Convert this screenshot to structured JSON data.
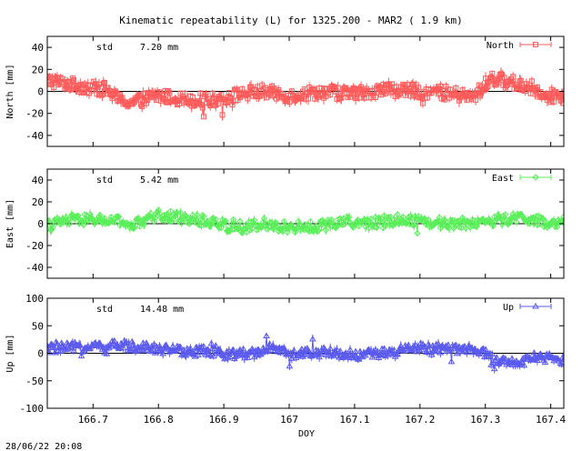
{
  "title": "Kinematic repeatability (L) for 1325.200 - MAR2  (  1.9 km)",
  "footer": "28/06/22 20:08",
  "chart_data": {
    "type": "line",
    "xlabel": "DOY",
    "xlim": [
      166.63,
      167.42
    ],
    "xticks": [
      166.7,
      166.8,
      166.9,
      167,
      167.1,
      167.2,
      167.3,
      167.4
    ],
    "xtick_labels": [
      "166.7",
      "166.8",
      "166.9",
      "167",
      "167.1",
      "167.2",
      "167.3",
      "167.4"
    ],
    "panels": [
      {
        "key": "north",
        "ylabel": "North [mm]",
        "ylim": [
          -50,
          50
        ],
        "yticks": [
          -40,
          -20,
          0,
          20,
          40
        ],
        "stat_label": "std",
        "stat_value": "7.20 mm",
        "legend": "North",
        "color": "#ff5a5a",
        "marker": "square",
        "trend": [
          [
            166.63,
            10
          ],
          [
            166.66,
            7
          ],
          [
            166.7,
            3
          ],
          [
            166.72,
            2
          ],
          [
            166.74,
            -8
          ],
          [
            166.76,
            -10
          ],
          [
            166.8,
            -4
          ],
          [
            166.84,
            -7
          ],
          [
            166.88,
            -8
          ],
          [
            166.92,
            -3
          ],
          [
            166.96,
            0
          ],
          [
            167.0,
            -4
          ],
          [
            167.05,
            0
          ],
          [
            167.1,
            -2
          ],
          [
            167.15,
            2
          ],
          [
            167.2,
            0
          ],
          [
            167.25,
            -2
          ],
          [
            167.28,
            -6
          ],
          [
            167.31,
            12
          ],
          [
            167.34,
            8
          ],
          [
            167.37,
            3
          ],
          [
            167.4,
            -4
          ],
          [
            167.42,
            -5
          ]
        ],
        "noise": 6,
        "spikes": 0.05,
        "spike_amp": 12,
        "bar": 4
      },
      {
        "key": "east",
        "ylabel": "East [mm]",
        "ylim": [
          -50,
          50
        ],
        "yticks": [
          -40,
          -20,
          0,
          20,
          40
        ],
        "stat_label": "std",
        "stat_value": "5.42 mm",
        "legend": "East",
        "color": "#5aef5a",
        "marker": "diamond",
        "trend": [
          [
            166.63,
            -2
          ],
          [
            166.66,
            3
          ],
          [
            166.7,
            4
          ],
          [
            166.74,
            2
          ],
          [
            166.76,
            -2
          ],
          [
            166.8,
            8
          ],
          [
            166.84,
            5
          ],
          [
            166.88,
            2
          ],
          [
            166.92,
            -4
          ],
          [
            166.96,
            -2
          ],
          [
            167.0,
            -3
          ],
          [
            167.04,
            -3
          ],
          [
            167.08,
            2
          ],
          [
            167.12,
            0
          ],
          [
            167.16,
            4
          ],
          [
            167.2,
            3
          ],
          [
            167.24,
            0
          ],
          [
            167.28,
            1
          ],
          [
            167.32,
            3
          ],
          [
            167.36,
            6
          ],
          [
            167.4,
            -2
          ],
          [
            167.42,
            2
          ]
        ],
        "noise": 5,
        "spikes": 0.03,
        "spike_amp": 8,
        "bar": 3
      },
      {
        "key": "up",
        "ylabel": "Up [mm]",
        "ylim": [
          -100,
          100
        ],
        "yticks": [
          -100,
          -50,
          0,
          50,
          100
        ],
        "stat_label": "std",
        "stat_value": "14.48 mm",
        "legend": "Up",
        "color": "#5a5aef",
        "marker": "triangle",
        "trend": [
          [
            166.63,
            8
          ],
          [
            166.66,
            10
          ],
          [
            166.7,
            12
          ],
          [
            166.74,
            14
          ],
          [
            166.78,
            12
          ],
          [
            166.82,
            5
          ],
          [
            166.86,
            5
          ],
          [
            166.9,
            -2
          ],
          [
            166.94,
            0
          ],
          [
            166.97,
            8
          ],
          [
            167.0,
            -2
          ],
          [
            167.05,
            2
          ],
          [
            167.1,
            -3
          ],
          [
            167.15,
            0
          ],
          [
            167.2,
            10
          ],
          [
            167.25,
            8
          ],
          [
            167.29,
            5
          ],
          [
            167.32,
            -15
          ],
          [
            167.35,
            -18
          ],
          [
            167.38,
            -5
          ],
          [
            167.42,
            -15
          ]
        ],
        "noise": 9,
        "spikes": 0.06,
        "spike_amp": 25,
        "bar": 6
      }
    ]
  }
}
